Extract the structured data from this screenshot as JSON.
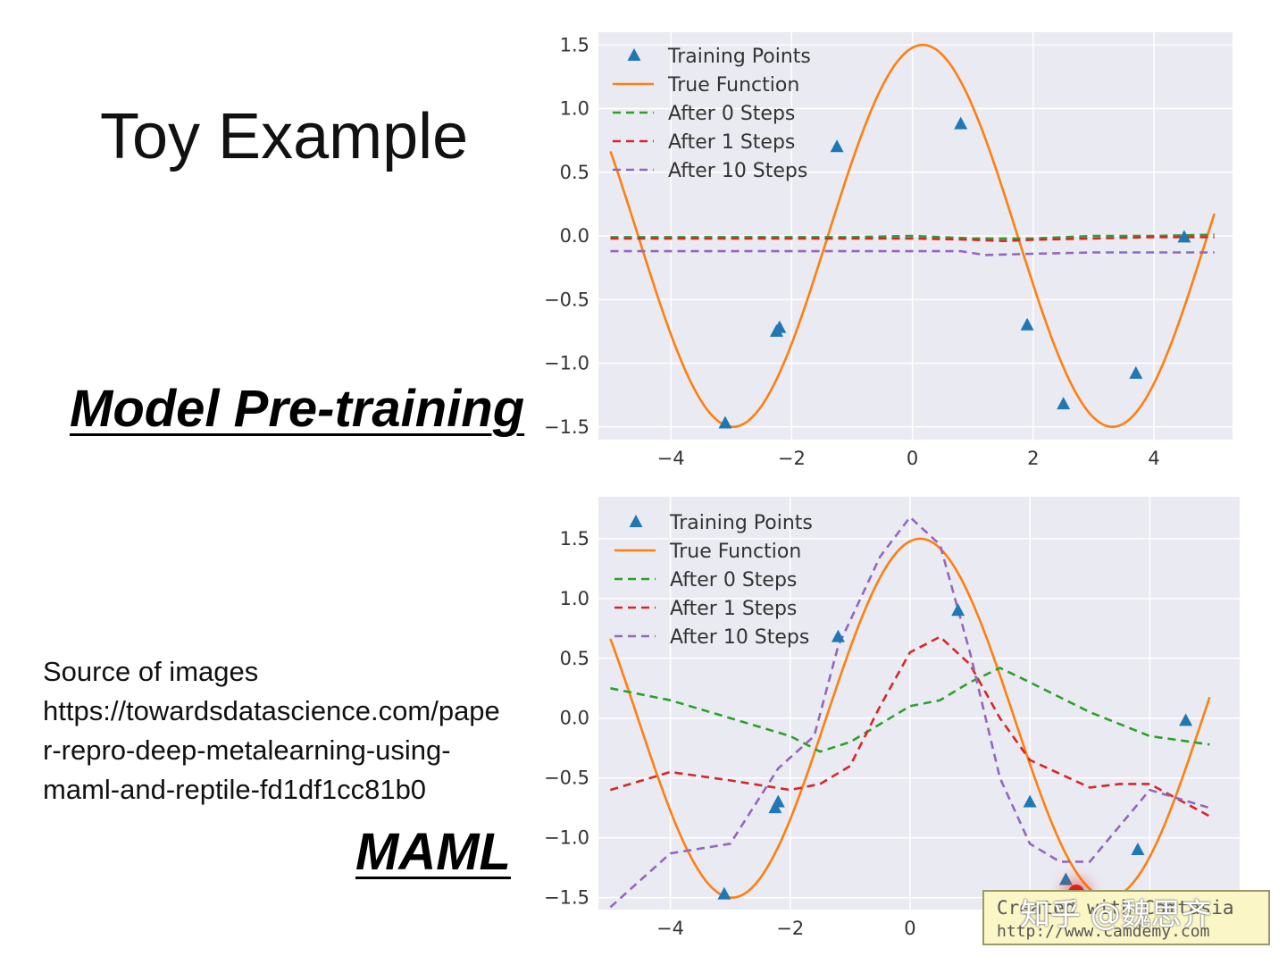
{
  "slide": {
    "title": "Toy Example",
    "label_pretrain": "Model Pre-training",
    "label_maml": "MAML",
    "source_lines": [
      "Source of images",
      "https://towardsdatascience.com/pape",
      "r-repro-deep-metalearning-using-",
      "maml-and-reptile-fd1df1cc81b0"
    ]
  },
  "watermark": {
    "line1": "Created with Camtasia",
    "line2": "http://www.camdemy.com",
    "overlay": "知乎 @魏思齐"
  },
  "colors": {
    "training": "#1f77b4",
    "true_function": "#ff7f0e",
    "after0": "#2ca02c",
    "after1": "#d62728",
    "after10": "#9467bd",
    "plot_bg": "#eaeaf2",
    "grid": "#ffffff"
  },
  "chart_data": [
    {
      "type": "line",
      "xlim": [
        -5.2,
        5.3
      ],
      "ylim": [
        -1.6,
        1.6
      ],
      "xticks": [
        -4,
        -2,
        0,
        2,
        4
      ],
      "yticks": [
        1.5,
        1.0,
        0.5,
        0.0,
        -0.5,
        -1.0,
        -1.5
      ],
      "xtick_labels": [
        "−4",
        "−2",
        "0",
        "2",
        "4"
      ],
      "ytick_labels": [
        "1.5",
        "1.0",
        "0.5",
        "0.0",
        "−0.5",
        "−1.0",
        "−1.5"
      ],
      "grid": true,
      "legend_position": "top-left",
      "true_function": {
        "amplitude": 1.5,
        "phase": 1.4,
        "x_range": [
          -5,
          5
        ]
      },
      "series": [
        {
          "name": "Training Points",
          "kind": "marker",
          "color": "#1f77b4",
          "x": [
            -3.1,
            -2.25,
            -2.2,
            -1.25,
            0.8,
            1.9,
            2.5,
            3.7,
            4.5
          ],
          "y": [
            -1.47,
            -0.75,
            -0.72,
            0.7,
            0.88,
            -0.7,
            -1.32,
            -1.08,
            -0.01
          ]
        },
        {
          "name": "True Function",
          "kind": "line",
          "color": "#ff7f0e"
        },
        {
          "name": "After 0 Steps",
          "kind": "dashed",
          "color": "#2ca02c",
          "x": [
            -5,
            -3,
            -1,
            0,
            1,
            2,
            3,
            4,
            5
          ],
          "y": [
            -0.01,
            -0.01,
            -0.01,
            0.0,
            -0.02,
            -0.02,
            0.0,
            0.0,
            0.01
          ]
        },
        {
          "name": "After 1 Steps",
          "kind": "dashed",
          "color": "#d62728",
          "x": [
            -5,
            -3,
            -1,
            0,
            1,
            1.5,
            2,
            3,
            4,
            5
          ],
          "y": [
            -0.02,
            -0.02,
            -0.02,
            -0.02,
            -0.03,
            -0.04,
            -0.03,
            -0.02,
            -0.01,
            -0.01
          ]
        },
        {
          "name": "After 10 Steps",
          "kind": "dashed",
          "color": "#9467bd",
          "x": [
            -5,
            -3,
            -1,
            0,
            0.8,
            1.2,
            2,
            3,
            4,
            5
          ],
          "y": [
            -0.12,
            -0.12,
            -0.12,
            -0.12,
            -0.12,
            -0.15,
            -0.14,
            -0.13,
            -0.13,
            -0.13
          ]
        }
      ]
    },
    {
      "type": "line",
      "xlim": [
        -5.2,
        5.5
      ],
      "ylim": [
        -1.6,
        1.85
      ],
      "xticks": [
        -4,
        -2,
        0,
        2,
        4
      ],
      "yticks": [
        1.5,
        1.0,
        0.5,
        0.0,
        -0.5,
        -1.0,
        -1.5
      ],
      "xtick_labels": [
        "−4",
        "−2",
        "0",
        "2",
        "4"
      ],
      "ytick_labels": [
        "1.5",
        "1.0",
        "0.5",
        "0.0",
        "−0.5",
        "−1.0",
        "−1.5"
      ],
      "grid": true,
      "legend_position": "top-left",
      "true_function": {
        "amplitude": 1.5,
        "phase": 1.4,
        "x_range": [
          -5,
          5
        ]
      },
      "series": [
        {
          "name": "Training Points",
          "kind": "marker",
          "color": "#1f77b4",
          "x": [
            -3.1,
            -2.25,
            -2.2,
            -1.2,
            0.8,
            2.0,
            2.6,
            3.8,
            4.6
          ],
          "y": [
            -1.47,
            -0.75,
            -0.7,
            0.68,
            0.9,
            -0.7,
            -1.35,
            -1.1,
            -0.02
          ]
        },
        {
          "name": "True Function",
          "kind": "line",
          "color": "#ff7f0e"
        },
        {
          "name": "After 0 Steps",
          "kind": "dashed",
          "color": "#2ca02c",
          "x": [
            -5,
            -4,
            -3,
            -2,
            -1.5,
            -1,
            0,
            0.5,
            1,
            1.5,
            2,
            3,
            4,
            5
          ],
          "y": [
            0.25,
            0.15,
            0.0,
            -0.15,
            -0.28,
            -0.2,
            0.1,
            0.15,
            0.3,
            0.42,
            0.3,
            0.05,
            -0.15,
            -0.22
          ]
        },
        {
          "name": "After 1 Steps",
          "kind": "dashed",
          "color": "#d62728",
          "x": [
            -5,
            -4,
            -3,
            -2,
            -1.5,
            -1,
            -0.5,
            0,
            0.5,
            1,
            1.5,
            2,
            3,
            3.5,
            4,
            5
          ],
          "y": [
            -0.6,
            -0.45,
            -0.52,
            -0.6,
            -0.55,
            -0.4,
            0.1,
            0.55,
            0.68,
            0.45,
            0.0,
            -0.35,
            -0.58,
            -0.55,
            -0.55,
            -0.82
          ]
        },
        {
          "name": "After 10 Steps",
          "kind": "dashed",
          "color": "#9467bd",
          "x": [
            -5,
            -4,
            -3,
            -2.2,
            -1.6,
            -1.2,
            -0.5,
            0,
            0.5,
            1.0,
            1.5,
            2,
            2.5,
            3,
            4,
            5
          ],
          "y": [
            -1.58,
            -1.13,
            -1.05,
            -0.42,
            -0.15,
            0.6,
            1.35,
            1.68,
            1.45,
            0.55,
            -0.5,
            -1.05,
            -1.2,
            -1.2,
            -0.6,
            -0.75
          ]
        }
      ]
    }
  ]
}
